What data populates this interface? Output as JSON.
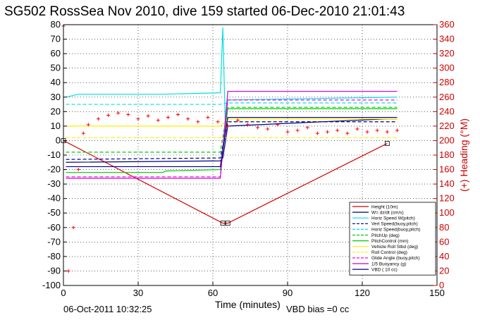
{
  "chart_data": {
    "type": "line",
    "title": "SG502 RossSea Nov 2010, dive 159 started 06-Dec-2010 21:01:43",
    "xlabel": "Time (minutes)",
    "ylabel": "",
    "y2label": "(+) Heading (°M)",
    "xlim": [
      0,
      150
    ],
    "ylim": [
      -100,
      80
    ],
    "y2lim": [
      0,
      360
    ],
    "x_ticks": [
      0,
      30,
      60,
      90,
      120,
      150
    ],
    "y_ticks": [
      80,
      70,
      60,
      50,
      40,
      30,
      20,
      10,
      0,
      -10,
      -20,
      -30,
      -40,
      -50,
      -60,
      -70,
      -80,
      -90,
      -100
    ],
    "y2_ticks": [
      360,
      340,
      320,
      300,
      280,
      260,
      240,
      220,
      200,
      180,
      160,
      140,
      120,
      100,
      80,
      60,
      40,
      20,
      0
    ],
    "grid": true,
    "legend_position": "bottom-right",
    "footer_left": "06-Oct-2011 10:32:25",
    "footer_right": "VBD bias =0 cc",
    "series": [
      {
        "name": "Height (10m)",
        "color": "#d40000",
        "style": "solid",
        "x": [
          0,
          64,
          66,
          130
        ],
        "y": [
          0,
          -57,
          -57,
          -2
        ]
      },
      {
        "name": "W= dz/dt (cm/s)",
        "color": "#000080",
        "style": "solid",
        "x": [
          1,
          63,
          64,
          66,
          130,
          134
        ],
        "y": [
          -15,
          -14,
          -12,
          10,
          15,
          15
        ]
      },
      {
        "name": "Horiz Speed W(pitch)",
        "color": "#00e0e0",
        "style": "solid",
        "x": [
          1,
          6,
          20,
          40,
          63,
          64,
          65,
          66,
          134
        ],
        "y": [
          30,
          32,
          32,
          32,
          33,
          78,
          10,
          28,
          30
        ]
      },
      {
        "name": "Vert Speed(buoy,pitch)",
        "color": "#000080",
        "style": "dashed",
        "x": [
          1,
          63,
          66,
          134
        ],
        "y": [
          -13,
          -12,
          13,
          13
        ]
      },
      {
        "name": "Horiz Speed(buoy,pitch)",
        "color": "#00e0e0",
        "style": "dashed",
        "x": [
          1,
          63,
          66,
          134
        ],
        "y": [
          25,
          25,
          26,
          26
        ]
      },
      {
        "name": "PitchUp (deg)",
        "color": "#00cc00",
        "style": "dashed",
        "x": [
          1,
          63,
          66,
          134
        ],
        "y": [
          -8,
          -8,
          23,
          23
        ]
      },
      {
        "name": "PitchControl (mm)",
        "color": "#00cc00",
        "style": "solid",
        "x": [
          1,
          40,
          41,
          63,
          66,
          134
        ],
        "y": [
          -22,
          -22,
          -21,
          -20,
          22,
          22
        ]
      },
      {
        "name": "Vehicle Roll Stbd (deg)",
        "color": "#ffee00",
        "style": "solid",
        "x": [
          1,
          20,
          40,
          63,
          66,
          134
        ],
        "y": [
          10,
          10,
          10,
          10,
          15,
          15
        ]
      },
      {
        "name": "Roll Control (deg)",
        "color": "#ffee00",
        "style": "dashed",
        "x": [
          1,
          63,
          66,
          134
        ],
        "y": [
          2,
          2,
          2,
          2
        ]
      },
      {
        "name": "Glide Angle (buoy,pitch)",
        "color": "#ff00ff",
        "style": "dashed",
        "x": [
          1,
          63,
          66,
          134
        ],
        "y": [
          -25,
          -25,
          28,
          28
        ]
      },
      {
        "name": "1/5 Buoyancy (g)",
        "color": "#cc00cc",
        "style": "solid",
        "x": [
          1,
          63,
          66,
          134
        ],
        "y": [
          -26,
          -26,
          34,
          34
        ]
      },
      {
        "name": "VBD ( 10 cc)",
        "color": "#000080",
        "style": "solid",
        "x": [
          1,
          63,
          66,
          134
        ],
        "y": [
          -18,
          -18,
          16,
          16
        ]
      },
      {
        "name": "Heading",
        "axis": "right",
        "color": "#ff0000",
        "style": "plus",
        "x": [
          0,
          2,
          4,
          6,
          8,
          10,
          14,
          18,
          22,
          26,
          30,
          34,
          38,
          42,
          46,
          50,
          54,
          58,
          62,
          66,
          70,
          74,
          78,
          82,
          86,
          90,
          94,
          98,
          102,
          106,
          110,
          114,
          118,
          122,
          126,
          130,
          134
        ],
        "y": [
          358,
          20,
          80,
          160,
          210,
          222,
          230,
          235,
          238,
          236,
          230,
          234,
          228,
          232,
          236,
          230,
          226,
          232,
          226,
          220,
          228,
          222,
          218,
          216,
          222,
          212,
          214,
          218,
          210,
          212,
          214,
          210,
          216,
          212,
          214,
          212,
          214
        ]
      }
    ]
  }
}
